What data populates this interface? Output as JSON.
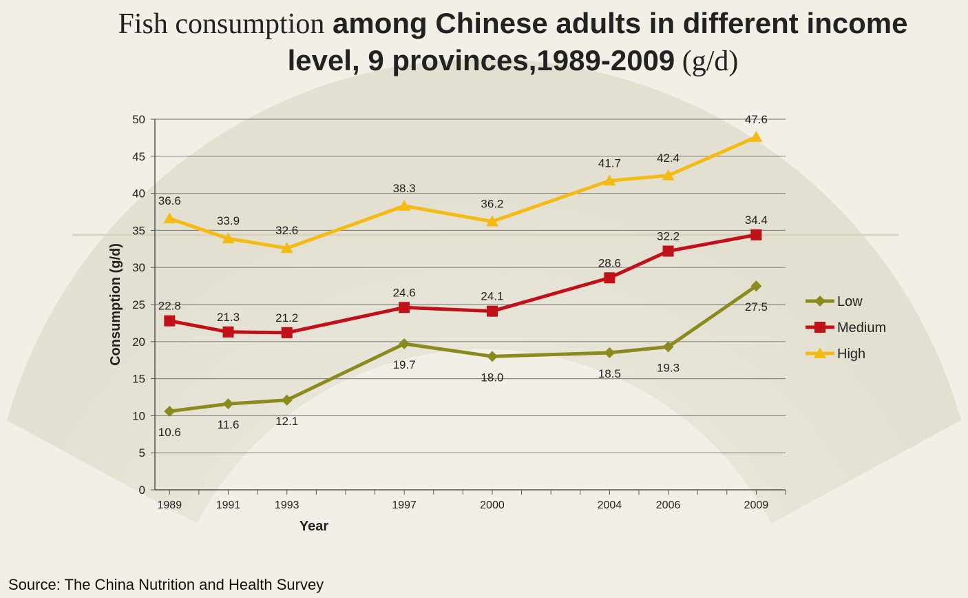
{
  "header": {
    "title_part1": "Fish consumption",
    "title_part2": " among Chinese adults in different income",
    "title_line2_bold": "level, 9 provinces,1989-2009",
    "title_line2_unit": " (g/d)"
  },
  "footer": {
    "source": "Source: The China Nutrition and Health Survey"
  },
  "colors": {
    "low": "#8b8a1e",
    "medium": "#c0111b",
    "high": "#f4bb14",
    "grid": "#8a8a8a",
    "axis": "#555555",
    "text": "#222222"
  },
  "chart_data": {
    "type": "line",
    "title": "Fish consumption among Chinese adults in different income level, 9 provinces,1989-2009 (g/d)",
    "xlabel": "Year",
    "ylabel": "Consumption (g/d)",
    "ylim": [
      0,
      50
    ],
    "yticks": [
      0,
      5,
      10,
      15,
      20,
      25,
      30,
      35,
      40,
      45,
      50
    ],
    "x_range": [
      1988.5,
      2010
    ],
    "grid": true,
    "legend_position": "right",
    "categories": [
      "1989",
      "1991",
      "1993",
      "1997",
      "2000",
      "2004",
      "2006",
      "2009"
    ],
    "x": [
      1989,
      1991,
      1993,
      1997,
      2000,
      2004,
      2006,
      2009
    ],
    "series": [
      {
        "name": "Low",
        "marker": "diamond",
        "color": "#8b8a1e",
        "values": [
          10.6,
          11.6,
          12.1,
          19.7,
          18.0,
          18.5,
          19.3,
          27.5
        ],
        "labels": [
          "10.6",
          "11.6",
          "12.1",
          "19.7",
          "18.0",
          "18.5",
          "19.3",
          "27.5"
        ]
      },
      {
        "name": "Medium",
        "marker": "square",
        "color": "#c0111b",
        "values": [
          22.8,
          21.3,
          21.2,
          24.6,
          24.1,
          28.6,
          32.2,
          34.4
        ],
        "labels": [
          "22.8",
          "21.3",
          "21.2",
          "24.6",
          "24.1",
          "28.6",
          "32.2",
          "34.4"
        ]
      },
      {
        "name": "High",
        "marker": "triangle",
        "color": "#f4bb14",
        "values": [
          36.6,
          33.9,
          32.6,
          38.3,
          36.2,
          41.7,
          42.4,
          47.6
        ],
        "labels": [
          "36.6",
          "33.9",
          "32.6",
          "38.3",
          "36.2",
          "41.7",
          "42.4",
          "47.6"
        ]
      }
    ]
  }
}
